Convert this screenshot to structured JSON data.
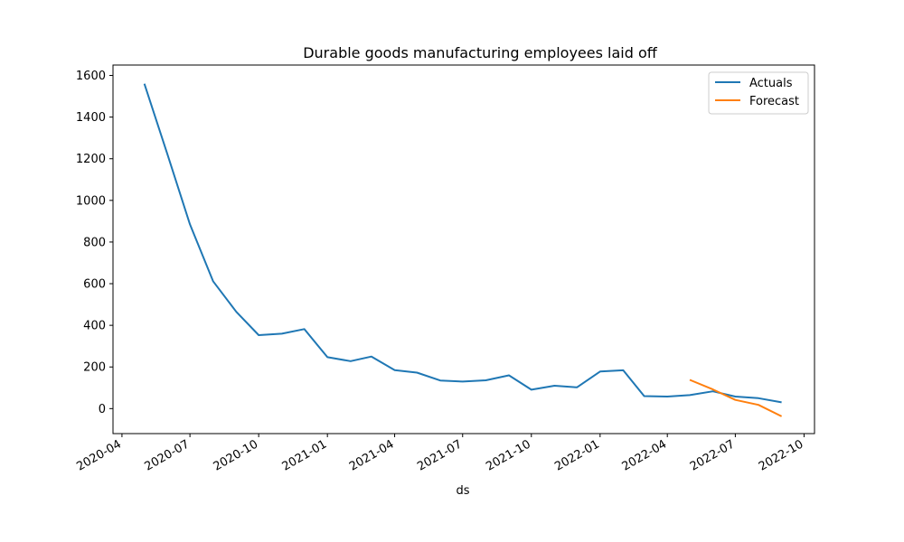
{
  "chart_data": {
    "type": "line",
    "title": "Durable goods manufacturing employees laid off",
    "xlabel": "ds",
    "ylabel": "",
    "x_tick_labels": [
      "2020-04",
      "2020-07",
      "2020-10",
      "2021-01",
      "2021-04",
      "2021-07",
      "2021-10",
      "2022-01",
      "2022-04",
      "2022-07",
      "2022-10"
    ],
    "x_tick_dates": [
      "2020-04-01",
      "2020-07-01",
      "2020-10-01",
      "2021-01-01",
      "2021-04-01",
      "2021-07-01",
      "2021-10-01",
      "2022-01-01",
      "2022-04-01",
      "2022-07-01",
      "2022-10-01"
    ],
    "y_ticks": [
      0,
      200,
      400,
      600,
      800,
      1000,
      1200,
      1400,
      1600
    ],
    "xlim": [
      "2020-03-20",
      "2022-10-15"
    ],
    "ylim": [
      -120,
      1650
    ],
    "grid": false,
    "legend_position": "top-right",
    "series": [
      {
        "name": "Actuals",
        "color": "#1f77b4",
        "x": [
          "2020-05-01",
          "2020-06-01",
          "2020-07-01",
          "2020-08-01",
          "2020-09-01",
          "2020-10-01",
          "2020-11-01",
          "2020-12-01",
          "2021-01-01",
          "2021-02-01",
          "2021-03-01",
          "2021-04-01",
          "2021-05-01",
          "2021-06-01",
          "2021-07-01",
          "2021-08-01",
          "2021-09-01",
          "2021-10-01",
          "2021-11-01",
          "2021-12-01",
          "2022-01-01",
          "2022-02-01",
          "2022-03-01",
          "2022-04-01",
          "2022-05-01",
          "2022-06-01",
          "2022-07-01",
          "2022-08-01",
          "2022-09-01"
        ],
        "values": [
          1560,
          1220,
          885,
          612,
          465,
          353,
          360,
          382,
          247,
          228,
          250,
          185,
          173,
          135,
          130,
          136,
          160,
          91,
          110,
          102,
          178,
          184,
          60,
          58,
          65,
          83,
          58,
          50,
          30
        ]
      },
      {
        "name": "Forecast",
        "color": "#ff7f0e",
        "x": [
          "2022-05-01",
          "2022-06-01",
          "2022-07-01",
          "2022-08-01",
          "2022-09-01"
        ],
        "values": [
          138,
          92,
          42,
          18,
          -37
        ]
      }
    ]
  }
}
